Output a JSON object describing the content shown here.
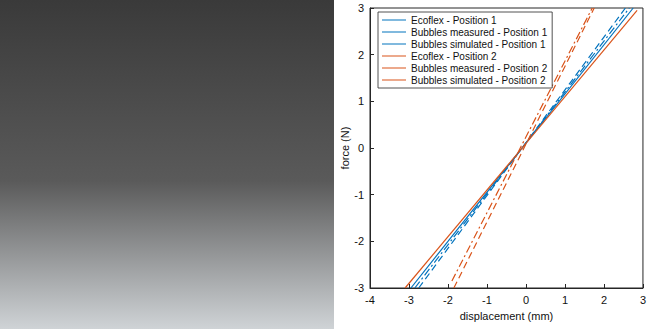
{
  "chart_data": {
    "type": "line",
    "xlabel": "displacement (mm)",
    "ylabel": "force (N)",
    "xlim": [
      -4,
      3
    ],
    "xticks": [
      -4,
      -3,
      -2,
      -1,
      0,
      1,
      2,
      3
    ],
    "ylim": [
      -3,
      3
    ],
    "yticks": [
      -3,
      -2,
      -1,
      0,
      1,
      2,
      3
    ],
    "grid": false,
    "legend": "upper left",
    "series": [
      {
        "name": "Ecoflex - Position 1",
        "color": "#0072bd",
        "line_style": "solid",
        "x": [
          -2.95,
          2.75
        ],
        "values": [
          -3,
          3
        ]
      },
      {
        "name": "Bubbles measured - Position 1",
        "color": "#0072bd",
        "line_style": "dashed",
        "x": [
          -2.75,
          2.55
        ],
        "values": [
          -3,
          3
        ]
      },
      {
        "name": "Bubbles simulated - Position 1",
        "color": "#0072bd",
        "line_style": "dashdot",
        "x": [
          -2.85,
          2.65
        ],
        "values": [
          -3,
          3
        ]
      },
      {
        "name": "Ecoflex - Position 2",
        "color": "#d95319",
        "line_style": "solid",
        "x": [
          -3.1,
          2.85
        ],
        "values": [
          -3,
          2.95
        ]
      },
      {
        "name": "Bubbles measured - Position 2",
        "color": "#d95319",
        "line_style": "dashed",
        "x": [
          -1.85,
          1.75
        ],
        "values": [
          -3,
          3
        ]
      },
      {
        "name": "Bubbles simulated - Position 2",
        "color": "#d95319",
        "line_style": "dashdot",
        "x": [
          -1.9,
          1.7
        ],
        "values": [
          -2.85,
          3
        ]
      }
    ]
  }
}
